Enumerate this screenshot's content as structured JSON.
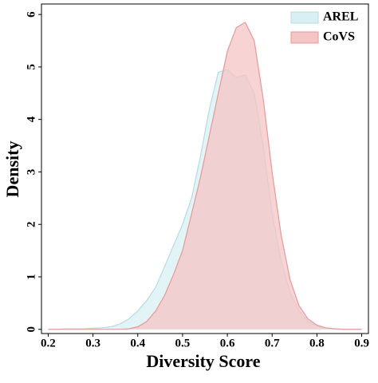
{
  "chart_data": {
    "type": "area",
    "xlabel": "Diversity Score",
    "ylabel": "Density",
    "x": [
      0.2,
      0.22,
      0.24,
      0.26,
      0.28,
      0.3,
      0.32,
      0.34,
      0.36,
      0.38,
      0.4,
      0.42,
      0.44,
      0.46,
      0.48,
      0.5,
      0.52,
      0.54,
      0.56,
      0.58,
      0.6,
      0.62,
      0.64,
      0.66,
      0.68,
      0.7,
      0.72,
      0.74,
      0.76,
      0.78,
      0.8,
      0.82,
      0.84,
      0.86,
      0.88,
      0.9
    ],
    "series": [
      {
        "name": "AREL",
        "color": "#d9f0f3",
        "edge": "#b5dbe2",
        "values": [
          0,
          0,
          0.01,
          0.01,
          0.01,
          0.02,
          0.03,
          0.05,
          0.1,
          0.2,
          0.35,
          0.55,
          0.8,
          1.2,
          1.6,
          2.0,
          2.5,
          3.3,
          4.2,
          4.9,
          4.95,
          4.8,
          4.85,
          4.5,
          3.5,
          2.2,
          1.3,
          0.7,
          0.35,
          0.15,
          0.06,
          0.02,
          0.01,
          0,
          0,
          0
        ]
      },
      {
        "name": "CoVS",
        "color": "#f5c4c4",
        "edge": "#e39a9a",
        "values": [
          0,
          0,
          0,
          0,
          0,
          0,
          0,
          0,
          0,
          0.01,
          0.05,
          0.15,
          0.35,
          0.65,
          1.05,
          1.5,
          2.2,
          2.9,
          3.7,
          4.5,
          5.3,
          5.75,
          5.85,
          5.5,
          4.4,
          3.0,
          1.8,
          0.95,
          0.45,
          0.2,
          0.08,
          0.03,
          0.01,
          0,
          0,
          0
        ]
      }
    ],
    "xlim": [
      0.185,
      0.915
    ],
    "ylim": [
      -0.08,
      6.2
    ],
    "xticks": [
      0.2,
      0.3,
      0.4,
      0.5,
      0.6,
      0.7,
      0.8,
      0.9
    ],
    "yticks": [
      0,
      1,
      2,
      3,
      4,
      5,
      6
    ],
    "legend": "upper right"
  }
}
